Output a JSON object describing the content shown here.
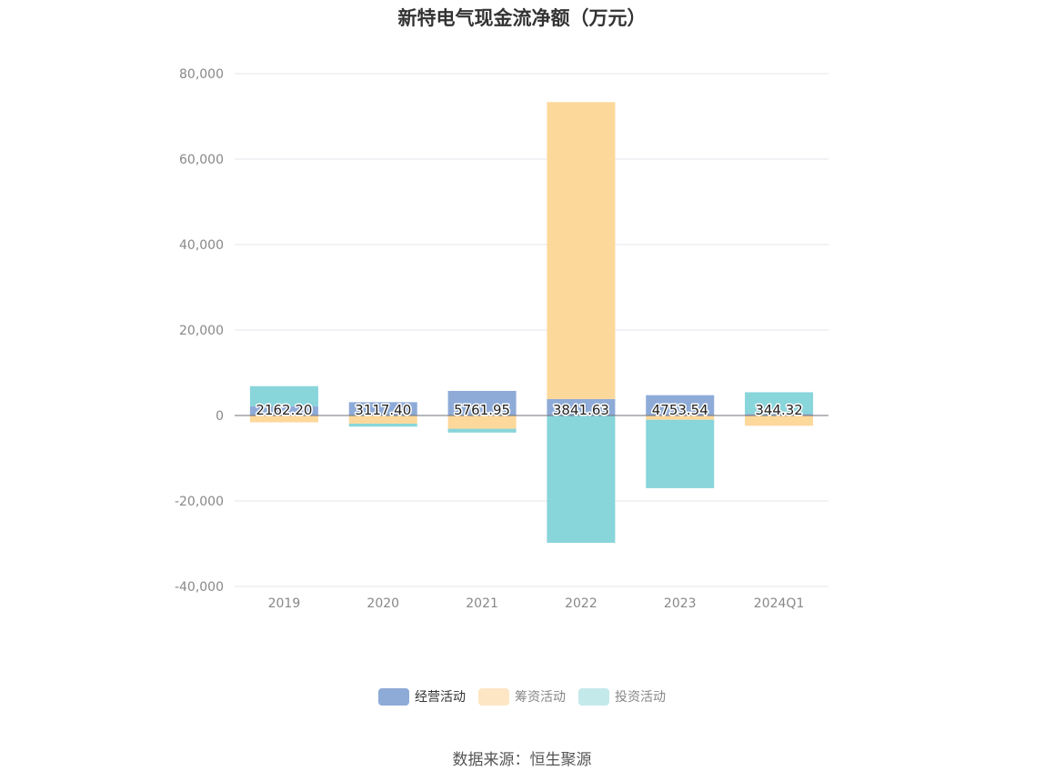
{
  "title": "新特电气现金流净额（万元）",
  "source": "数据来源：恒生聚源",
  "chart_data": {
    "type": "bar",
    "stacked": true,
    "categories": [
      "2019",
      "2020",
      "2021",
      "2022",
      "2023",
      "2024Q1"
    ],
    "series": [
      {
        "name": "经营活动",
        "color": "#8eabd8",
        "values": [
          2162.2,
          3117.4,
          5761.95,
          3841.63,
          4753.54,
          344.32
        ]
      },
      {
        "name": "筹资活动",
        "color": "#fdd89b",
        "values": [
          -1600,
          -1900,
          -3100,
          69500,
          -1000,
          -2400
        ]
      },
      {
        "name": "投资活动",
        "color": "#88d5da",
        "values": [
          4700,
          -700,
          -900,
          -29800,
          -16000,
          5100
        ]
      }
    ],
    "data_labels": [
      "2162.20",
      "3117.40",
      "5761.95",
      "3841.63",
      "4753.54",
      "344.32"
    ],
    "ylim": [
      -40000,
      80000
    ],
    "yticks": [
      80000,
      60000,
      40000,
      20000,
      0,
      -20000,
      -40000
    ],
    "ytick_labels": [
      "80,000",
      "60,000",
      "40,000",
      "20,000",
      "0",
      "-20,000",
      "-40,000"
    ],
    "grid": true,
    "legend_position": "bottom",
    "legend": [
      {
        "label": "经营活动",
        "color": "#8eabd8",
        "active": true
      },
      {
        "label": "筹资活动",
        "color": "#fde6c4",
        "active": false
      },
      {
        "label": "投资活动",
        "color": "#c4e9eb",
        "active": false
      }
    ]
  }
}
